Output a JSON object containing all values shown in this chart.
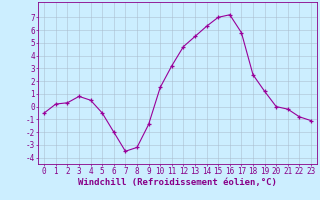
{
  "x": [
    0,
    1,
    2,
    3,
    4,
    5,
    6,
    7,
    8,
    9,
    10,
    11,
    12,
    13,
    14,
    15,
    16,
    17,
    18,
    19,
    20,
    21,
    22,
    23
  ],
  "y": [
    -0.5,
    0.2,
    0.3,
    0.8,
    0.5,
    -0.5,
    -2.0,
    -3.5,
    -3.2,
    -1.4,
    1.5,
    3.2,
    4.7,
    5.5,
    6.3,
    7.0,
    7.2,
    5.8,
    2.5,
    1.2,
    0.0,
    -0.2,
    -0.8,
    -1.1
  ],
  "line_color": "#990099",
  "marker": "+",
  "bg_color": "#cceeff",
  "grid_color": "#aabbcc",
  "tick_color": "#880088",
  "xlabel": "Windchill (Refroidissement éolien,°C)",
  "ylim": [
    -4.5,
    8.2
  ],
  "xlim": [
    -0.5,
    23.5
  ],
  "yticks": [
    -4,
    -3,
    -2,
    -1,
    0,
    1,
    2,
    3,
    4,
    5,
    6,
    7
  ],
  "xticks": [
    0,
    1,
    2,
    3,
    4,
    5,
    6,
    7,
    8,
    9,
    10,
    11,
    12,
    13,
    14,
    15,
    16,
    17,
    18,
    19,
    20,
    21,
    22,
    23
  ],
  "tick_fontsize": 5.5,
  "xlabel_fontsize": 6.5
}
